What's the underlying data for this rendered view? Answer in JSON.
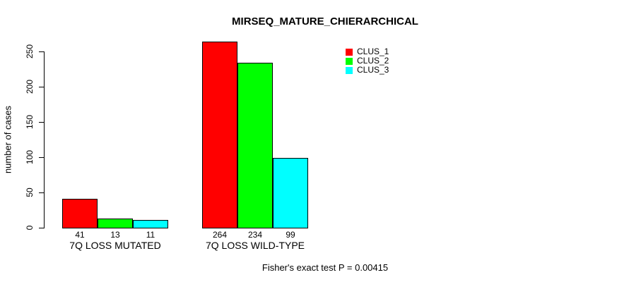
{
  "title": "MIRSEQ_MATURE_CHIERARCHICAL",
  "ylabel": "number of cases",
  "footer": "Fisher's exact test P = 0.00415",
  "chart_data": {
    "type": "bar",
    "title": "MIRSEQ_MATURE_CHIERARCHICAL",
    "xlabel": "",
    "ylabel": "number of cases",
    "categories": [
      "7Q LOSS MUTATED",
      "7Q LOSS WILD-TYPE"
    ],
    "series": [
      {
        "name": "CLUS_1",
        "color": "#ff0000",
        "values": [
          41,
          264
        ]
      },
      {
        "name": "CLUS_2",
        "color": "#00ff00",
        "values": [
          13,
          234
        ]
      },
      {
        "name": "CLUS_3",
        "color": "#00ffff",
        "values": [
          11,
          99
        ]
      }
    ],
    "bar_value_labels": [
      [
        "41",
        "13",
        "11"
      ],
      [
        "264",
        "234",
        "99"
      ]
    ],
    "yticks": [
      0,
      50,
      100,
      150,
      200,
      250
    ],
    "ylim": [
      0,
      250
    ],
    "grid": false,
    "legend_position": "top-right",
    "annotation": "Fisher's exact test P = 0.00415"
  }
}
